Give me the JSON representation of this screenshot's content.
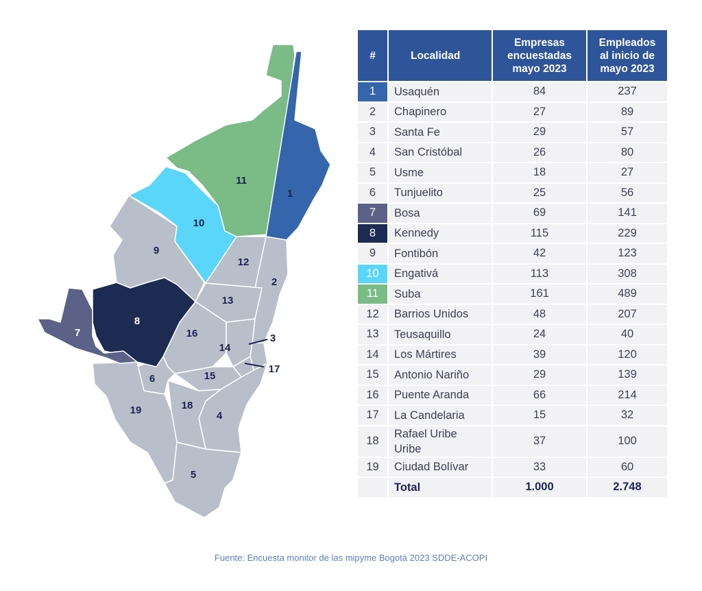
{
  "table": {
    "headers": {
      "num": "#",
      "localidad": "Localidad",
      "empresas": [
        "Empresas",
        "encuestadas",
        "mayo 2023"
      ],
      "empleados": [
        "Empleados",
        "al inicio de",
        "mayo 2023"
      ]
    },
    "rows": [
      {
        "num": "1",
        "name": "Usaquén",
        "empresas": "84",
        "empleados": "237",
        "color": "#3566ab"
      },
      {
        "num": "2",
        "name": "Chapinero",
        "empresas": "27",
        "empleados": "89",
        "color": ""
      },
      {
        "num": "3",
        "name": "Santa Fe",
        "empresas": "29",
        "empleados": "57",
        "color": ""
      },
      {
        "num": "4",
        "name": "San Cristóbal",
        "empresas": "26",
        "empleados": "80",
        "color": ""
      },
      {
        "num": "5",
        "name": "Usme",
        "empresas": "18",
        "empleados": "27",
        "color": ""
      },
      {
        "num": "6",
        "name": "Tunjuelito",
        "empresas": "25",
        "empleados": "56",
        "color": ""
      },
      {
        "num": "7",
        "name": "Bosa",
        "empresas": "69",
        "empleados": "141",
        "color": "#5c6187"
      },
      {
        "num": "8",
        "name": "Kennedy",
        "empresas": "115",
        "empleados": "229",
        "color": "#1d2b52"
      },
      {
        "num": "9",
        "name": "Fontibón",
        "empresas": "42",
        "empleados": "123",
        "color": ""
      },
      {
        "num": "10",
        "name": "Engativá",
        "empresas": "113",
        "empleados": "308",
        "color": "#5bd6fb"
      },
      {
        "num": "11",
        "name": "Suba",
        "empresas": "161",
        "empleados": "489",
        "color": "#7abb86"
      },
      {
        "num": "12",
        "name": "Barrios Unidos",
        "empresas": "48",
        "empleados": "207",
        "color": ""
      },
      {
        "num": "13",
        "name": "Teusaquillo",
        "empresas": "24",
        "empleados": "40",
        "color": ""
      },
      {
        "num": "14",
        "name": "Los Mártires",
        "empresas": "39",
        "empleados": "120",
        "color": ""
      },
      {
        "num": "15",
        "name": "Antonio Nariño",
        "empresas": "29",
        "empleados": "139",
        "color": ""
      },
      {
        "num": "16",
        "name": "Puente Aranda",
        "empresas": "66",
        "empleados": "214",
        "color": ""
      },
      {
        "num": "17",
        "name": "La Candelaria",
        "empresas": "15",
        "empleados": "32",
        "color": ""
      },
      {
        "num": "18",
        "name": [
          "Rafael Uribe",
          "Uribe"
        ],
        "empresas": "37",
        "empleados": "100",
        "color": ""
      },
      {
        "num": "19",
        "name": "Ciudad Bolívar",
        "empresas": "33",
        "empleados": "60",
        "color": ""
      }
    ],
    "total": {
      "label": "Total",
      "empresas": "1.000",
      "empleados": "2.748"
    }
  },
  "map": {
    "labels": [
      "1",
      "2",
      "3",
      "4",
      "5",
      "6",
      "7",
      "8",
      "9",
      "10",
      "11",
      "12",
      "13",
      "14",
      "15",
      "16",
      "17",
      "18",
      "19"
    ],
    "colors": {
      "default": "#b8bfca",
      "border": "#ffffff",
      "label": "#1b2452"
    }
  },
  "source": "Fuente: Encuesta monitor de las mipyme Bogotá 2023 SDDE-ACOPI"
}
